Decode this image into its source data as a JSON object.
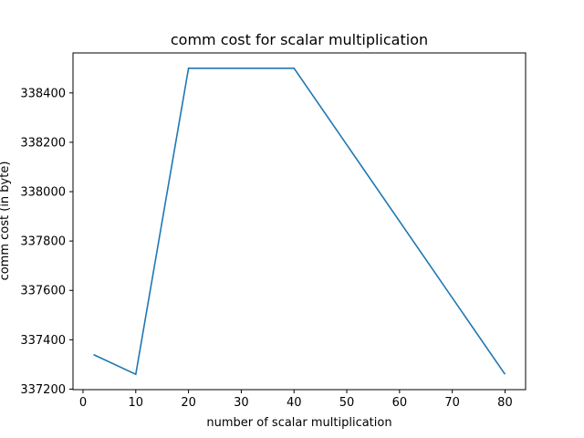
{
  "chart_data": {
    "type": "line",
    "title": "comm cost for scalar multiplication",
    "xlabel": "number of scalar multiplication",
    "ylabel": "comm cost (in byte)",
    "x": [
      2,
      10,
      20,
      40,
      80
    ],
    "series": [
      {
        "values": [
          337340,
          337260,
          338500,
          338500,
          337260
        ]
      }
    ],
    "xlim": [
      -1.9,
      83.9
    ],
    "ylim": [
      337198,
      338562
    ],
    "xticks": [
      0,
      10,
      20,
      30,
      40,
      50,
      60,
      70,
      80
    ],
    "yticks": [
      337200,
      337400,
      337600,
      337800,
      338000,
      338200,
      338400
    ],
    "grid": false,
    "line_color": "#1f77b4"
  }
}
